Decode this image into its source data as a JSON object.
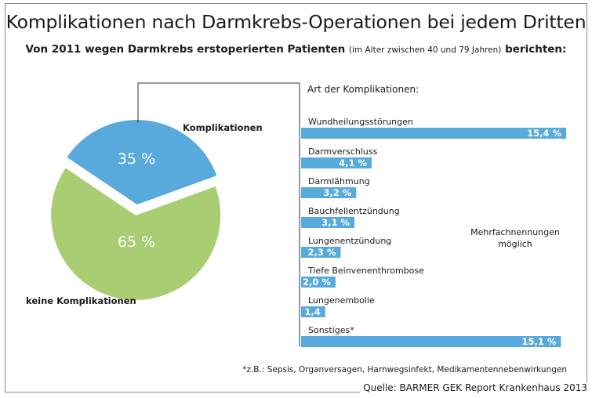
{
  "title": "Komplikationen nach Darmkrebs-Operationen bei jedem Dritten",
  "subtitle": {
    "part1": "Von 2011 wegen Darmkrebs erstoperierten Patienten",
    "part2": "(im Alter zwischen 40 und 79 Jahren)",
    "part3": "berichten:"
  },
  "footnote": "*z.B.: Sepsis, Organversagen, Harnwegsinfekt, Medikamentennebenwirkungen",
  "source": "Quelle: BARMER GEK Report Krankenhaus 2013",
  "colors": {
    "blue": "#58a9dc",
    "green": "#a8cd73"
  },
  "chart_data": [
    {
      "type": "pie",
      "slices": [
        {
          "name": "Komplikationen",
          "value": 35,
          "value_label": "35 %",
          "color": "#58a9dc"
        },
        {
          "name": "keine Komplikationen",
          "value": 65,
          "value_label": "65 %",
          "color": "#a8cd73"
        }
      ]
    },
    {
      "type": "bar",
      "orientation": "horizontal",
      "title": "Art der Komplikationen:",
      "annotation": "Mehrfachnennungen möglich",
      "annotation_lines": [
        "Mehrfachnennungen",
        "möglich"
      ],
      "categories": [
        "Wundheilungsstörungen",
        "Darmverschluss",
        "Darmlähmung",
        "Bauchfellentzündung",
        "Lungenentzündung",
        "Tiefe Beinvenenthrombose",
        "Lungenembolie",
        "Sonstiges*"
      ],
      "values": [
        15.4,
        4.1,
        3.2,
        3.1,
        2.3,
        2.0,
        1.4,
        15.1
      ],
      "value_labels": [
        "15,4 %",
        "4,1 %",
        "3,2 %",
        "3,1 %",
        "2,3 %",
        "2,0 %",
        "1,4",
        "15,1 %"
      ],
      "color": "#58a9dc"
    }
  ]
}
